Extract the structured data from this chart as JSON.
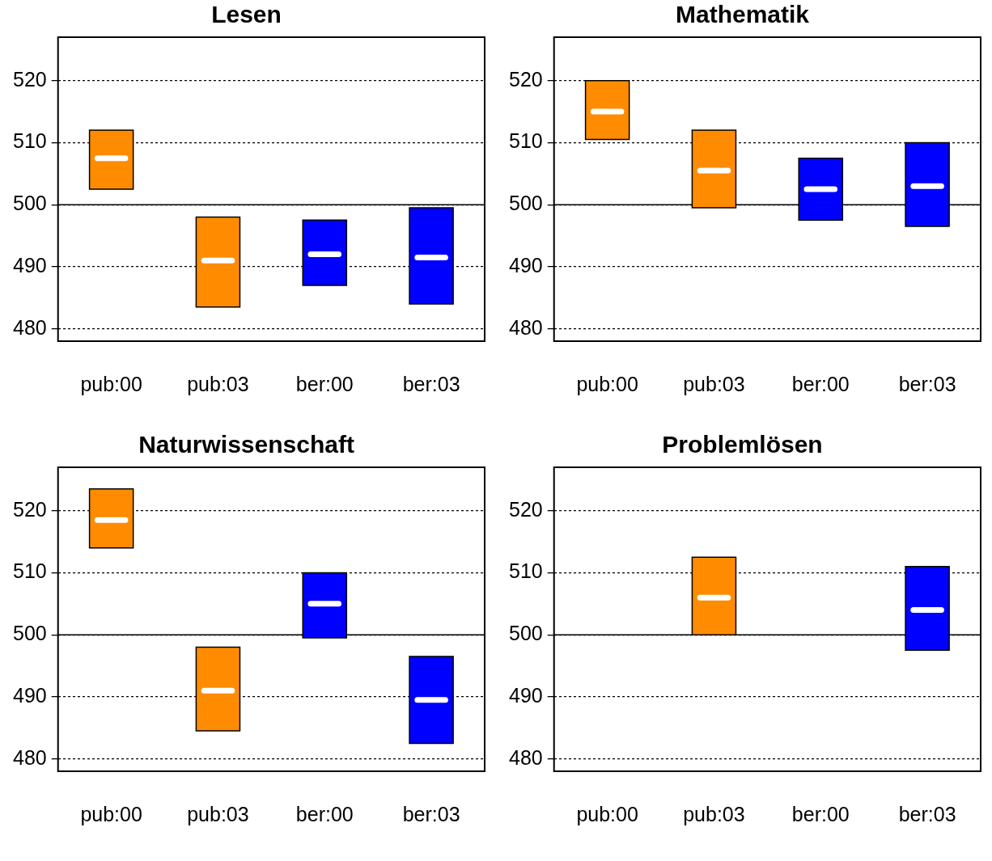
{
  "chart_data": [
    {
      "type": "box",
      "title": "Lesen",
      "categories": [
        "pub:00",
        "pub:03",
        "ber:00",
        "ber:03"
      ],
      "boxes": [
        {
          "low": 502.5,
          "q1": 502.5,
          "median": 507.5,
          "q3": 512,
          "high": 512
        },
        {
          "low": 483.5,
          "q1": 483.5,
          "median": 491,
          "q3": 498,
          "high": 498
        },
        {
          "low": 487,
          "q1": 487,
          "median": 492,
          "q3": 497.5,
          "high": 497.5
        },
        {
          "low": 484,
          "q1": 484,
          "median": 491.5,
          "q3": 499.5,
          "high": 499.5
        }
      ],
      "colors": [
        "#ff8c00",
        "#ff8c00",
        "#0000ff",
        "#0000ff"
      ],
      "ylim": [
        478,
        527
      ],
      "yticks": [
        480,
        490,
        500,
        510,
        520
      ],
      "grid": "y",
      "ref_lines": [
        {
          "axis": "y",
          "value": 500
        }
      ]
    },
    {
      "type": "box",
      "title": "Mathematik",
      "categories": [
        "pub:00",
        "pub:03",
        "ber:00",
        "ber:03"
      ],
      "boxes": [
        {
          "low": 510.5,
          "q1": 510.5,
          "median": 515,
          "q3": 520,
          "high": 520
        },
        {
          "low": 499.5,
          "q1": 499.5,
          "median": 505.5,
          "q3": 512,
          "high": 512
        },
        {
          "low": 497.5,
          "q1": 497.5,
          "median": 502.5,
          "q3": 507.5,
          "high": 507.5
        },
        {
          "low": 496.5,
          "q1": 496.5,
          "median": 503,
          "q3": 510,
          "high": 510
        }
      ],
      "colors": [
        "#ff8c00",
        "#ff8c00",
        "#0000ff",
        "#0000ff"
      ],
      "ylim": [
        478,
        527
      ],
      "yticks": [
        480,
        490,
        500,
        510,
        520
      ],
      "grid": "y",
      "ref_lines": [
        {
          "axis": "y",
          "value": 500
        }
      ]
    },
    {
      "type": "box",
      "title": "Naturwissenschaft",
      "categories": [
        "pub:00",
        "pub:03",
        "ber:00",
        "ber:03"
      ],
      "boxes": [
        {
          "low": 514,
          "q1": 514,
          "median": 518.5,
          "q3": 523.5,
          "high": 523.5
        },
        {
          "low": 484.5,
          "q1": 484.5,
          "median": 491,
          "q3": 498,
          "high": 498
        },
        {
          "low": 499.5,
          "q1": 499.5,
          "median": 505,
          "q3": 510,
          "high": 510
        },
        {
          "low": 482.5,
          "q1": 482.5,
          "median": 489.5,
          "q3": 496.5,
          "high": 496.5
        }
      ],
      "colors": [
        "#ff8c00",
        "#ff8c00",
        "#0000ff",
        "#0000ff"
      ],
      "ylim": [
        478,
        527
      ],
      "yticks": [
        480,
        490,
        500,
        510,
        520
      ],
      "grid": "y",
      "ref_lines": [
        {
          "axis": "y",
          "value": 500
        }
      ]
    },
    {
      "type": "box",
      "title": "Problemlösen",
      "categories": [
        "pub:00",
        "pub:03",
        "ber:00",
        "ber:03"
      ],
      "boxes": [
        null,
        {
          "low": 500,
          "q1": 500,
          "median": 506,
          "q3": 512.5,
          "high": 512.5
        },
        null,
        {
          "low": 497.5,
          "q1": 497.5,
          "median": 504,
          "q3": 511,
          "high": 511
        }
      ],
      "colors": [
        "#ff8c00",
        "#ff8c00",
        "#0000ff",
        "#0000ff"
      ],
      "ylim": [
        478,
        527
      ],
      "yticks": [
        480,
        490,
        500,
        510,
        520
      ],
      "grid": "y",
      "ref_lines": [
        {
          "axis": "y",
          "value": 500
        }
      ]
    }
  ]
}
